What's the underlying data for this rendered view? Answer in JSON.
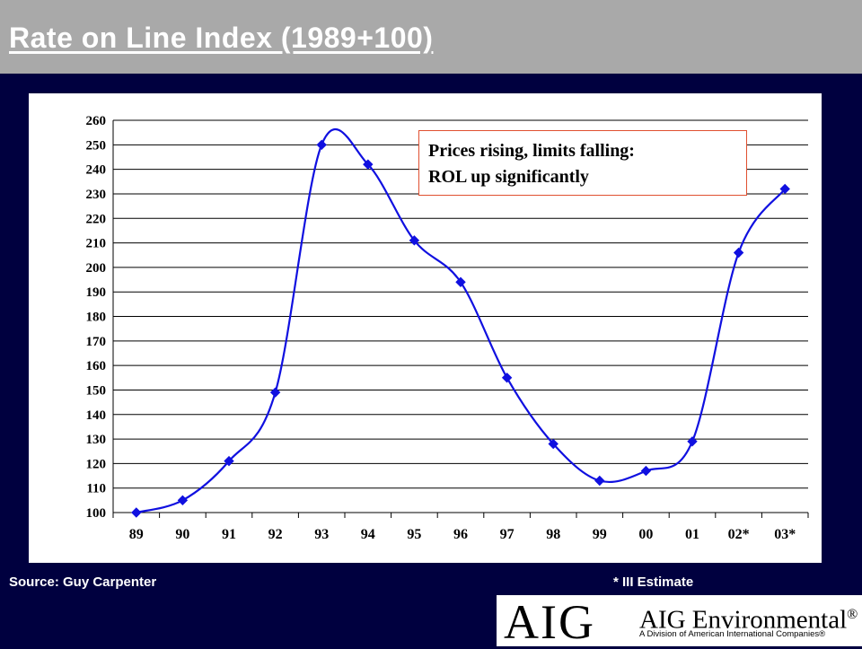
{
  "header": {
    "title": "Rate on Line Index (1989+100)"
  },
  "callout": {
    "line1": "Prices rising, limits falling:",
    "line2": "ROL up significantly"
  },
  "footer": {
    "source": "Source: Guy Carpenter",
    "note": "* III Estimate"
  },
  "logo": {
    "aig": "AIG",
    "company": "AIG Environmental",
    "registered": "®",
    "division": "A Division of American International Companies®"
  },
  "colors": {
    "series": "#1010e0",
    "background": "#00003f",
    "title_bar": "#a9a9a9"
  },
  "chart_data": {
    "type": "line",
    "categories": [
      "89",
      "90",
      "91",
      "92",
      "93",
      "94",
      "95",
      "96",
      "97",
      "98",
      "99",
      "00",
      "01",
      "02*",
      "03*"
    ],
    "values": [
      100,
      105,
      121,
      149,
      250,
      242,
      211,
      194,
      155,
      128,
      113,
      117,
      129,
      206,
      232
    ],
    "ylim": [
      100,
      260
    ],
    "yticks": [
      100,
      110,
      120,
      130,
      140,
      150,
      160,
      170,
      180,
      190,
      200,
      210,
      220,
      230,
      240,
      250,
      260
    ],
    "grid": true,
    "marker": "diamond",
    "smooth": true
  }
}
